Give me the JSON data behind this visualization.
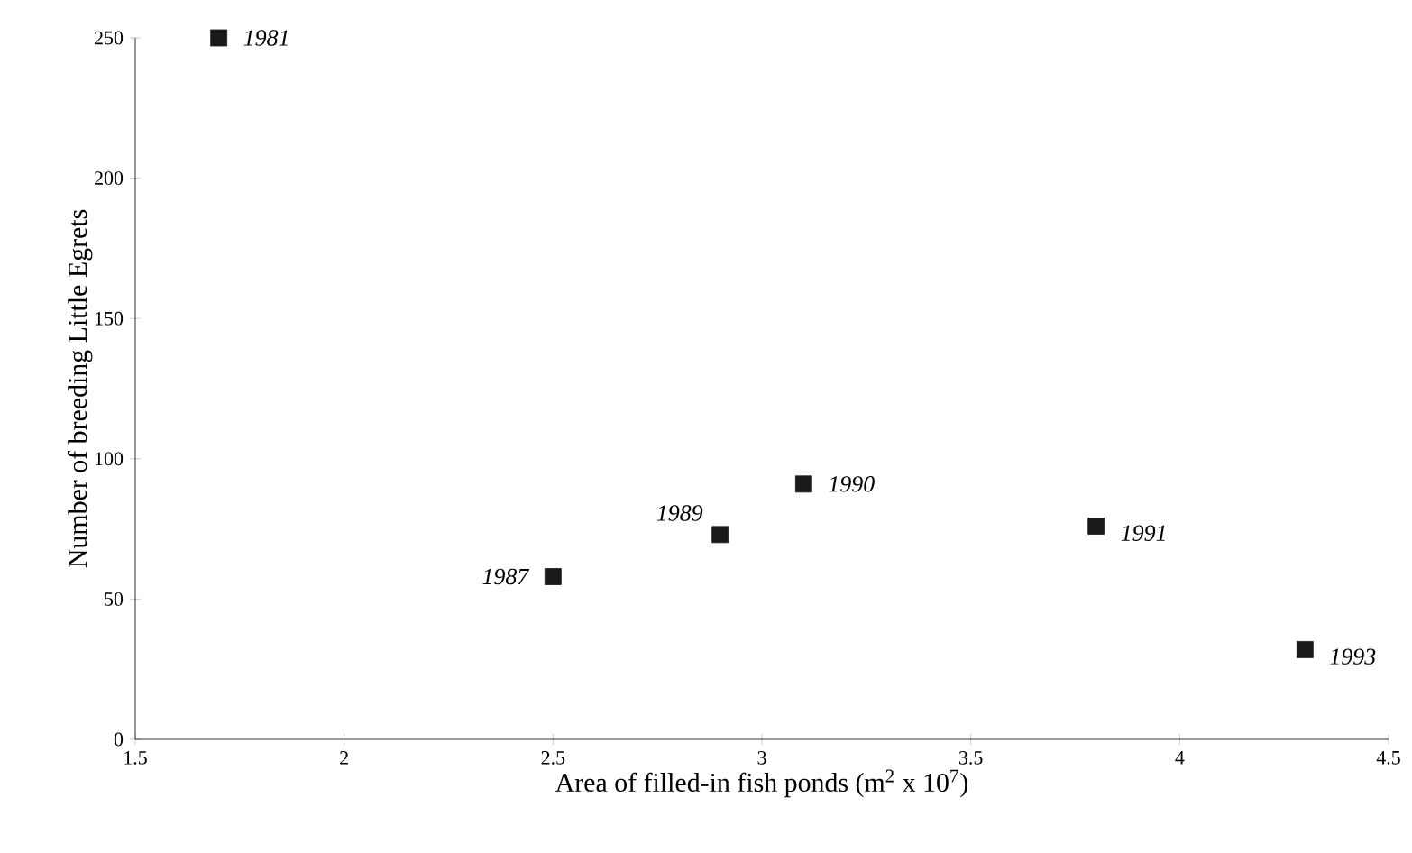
{
  "chart_data": {
    "type": "scatter",
    "xlabel": "Area of filled-in fish ponds (m$^{2}$ x 10$^{7}$)",
    "ylabel": "Number of breeding Little Egrets",
    "x": [
      1.7,
      2.5,
      2.9,
      3.1,
      3.8,
      4.3
    ],
    "series": [
      {
        "color": "#1a1a1a",
        "values": [
          250,
          58,
          73,
          91,
          76,
          32
        ]
      }
    ],
    "xlim": [
      1.5,
      4.5
    ],
    "ylim": [
      0,
      250
    ],
    "xticks": [
      1.5,
      2,
      2.5,
      3,
      3.5,
      4,
      4.5
    ],
    "yticks": [
      0,
      50,
      100,
      150,
      200,
      250
    ],
    "marker": "square",
    "grid": false,
    "legend": false,
    "annotations": [
      {
        "text": "1981",
        "x": 1.7,
        "y": 250
      },
      {
        "text": "1987",
        "x": 2.5,
        "y": 58
      },
      {
        "text": "1989",
        "x": 2.9,
        "y": 73
      },
      {
        "text": "1990",
        "x": 3.1,
        "y": 91
      },
      {
        "text": "1991",
        "x": 3.8,
        "y": 76
      },
      {
        "text": "1993",
        "x": 4.3,
        "y": 32
      }
    ]
  }
}
